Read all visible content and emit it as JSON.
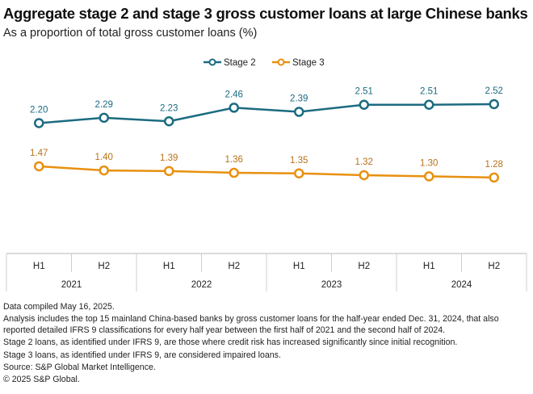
{
  "chart_data": {
    "type": "line",
    "title": "Aggregate stage 2 and stage 3 gross customer loans at large Chinese banks",
    "subtitle": "As a proportion of total gross customer loans (%)",
    "categories": [
      "H1",
      "H2",
      "H1",
      "H2",
      "H1",
      "H2",
      "H1",
      "H2"
    ],
    "years": [
      "2021",
      "2022",
      "2023",
      "2024"
    ],
    "series": [
      {
        "name": "Stage 2",
        "color": "#1b6b80",
        "label_color": "#1b6b80",
        "values": [
          2.2,
          2.29,
          2.23,
          2.46,
          2.39,
          2.51,
          2.51,
          2.52
        ]
      },
      {
        "name": "Stage 3",
        "color": "#e8900f",
        "label_color": "#b8721a",
        "values": [
          1.47,
          1.4,
          1.39,
          1.36,
          1.35,
          1.32,
          1.3,
          1.28
        ]
      }
    ],
    "legend": "top-center",
    "grid": false
  },
  "notes": [
    "Data compiled May 16, 2025.",
    "Analysis includes the top 15 mainland China-based banks by gross customer loans for the half-year ended Dec. 31, 2024, that also reported detailed IFRS 9 classifications for every half year between the first half of 2021 and the second half of 2024.",
    "Stage 2 loans, as identified under IFRS 9, are those where credit risk has increased significantly since initial recognition.",
    "Stage 3 loans, as identified under IFRS 9, are considered impaired loans.",
    "Source: S&P Global Market Intelligence.",
    "© 2025 S&P Global."
  ]
}
